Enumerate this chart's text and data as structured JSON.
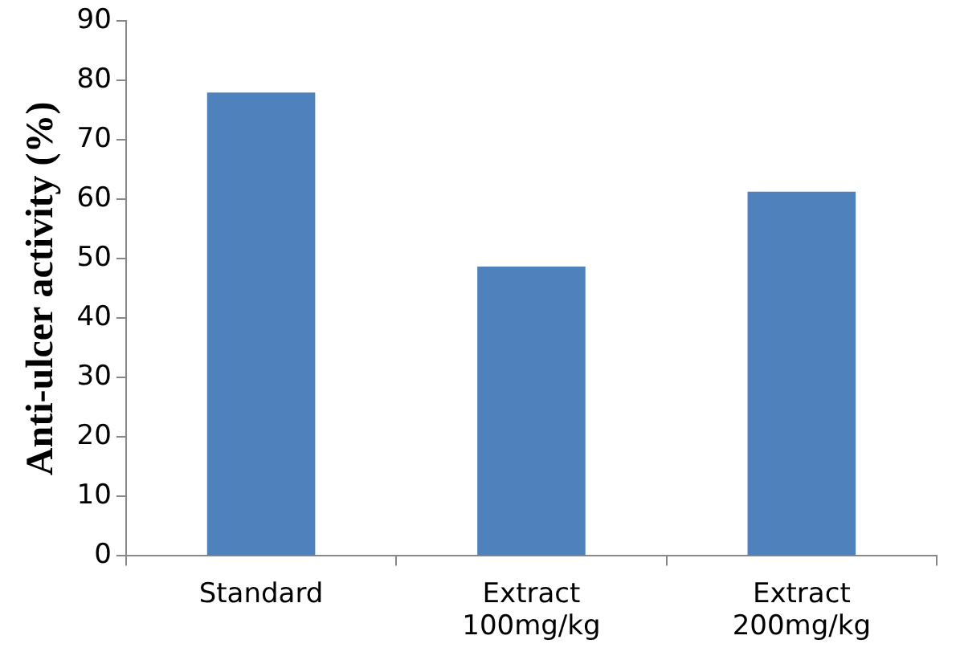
{
  "chart_data": {
    "type": "bar",
    "ylabel": "Anti-ulcer activity (%)",
    "categories": [
      "Standard",
      "Extract\n100mg/kg",
      "Extract\n200mg/kg"
    ],
    "values": [
      78,
      48.7,
      61.3
    ],
    "color": "#4f81bd",
    "ylim": [
      0,
      90
    ],
    "yticks": [
      0,
      10,
      20,
      30,
      40,
      50,
      60,
      70,
      80,
      90
    ],
    "grid": false,
    "legend": false
  }
}
